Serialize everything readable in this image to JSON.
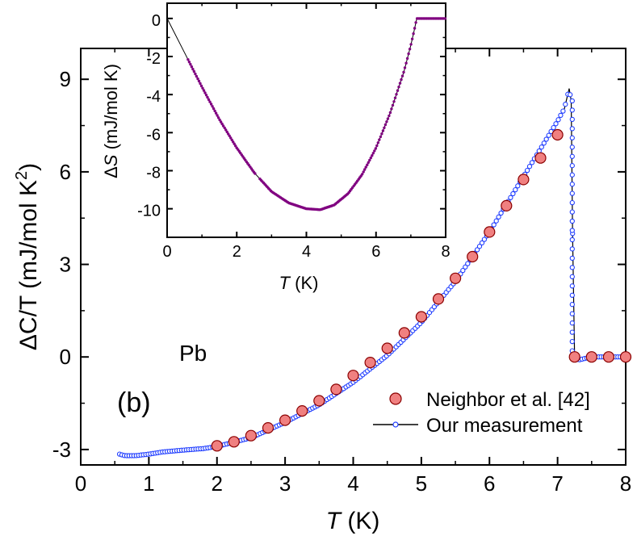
{
  "chart_data": [
    {
      "type": "scatter",
      "xlabel_var": "T",
      "xlabel_unit": " (K)",
      "ylabel_main": "ΔC/T (mJ/mol K",
      "ylabel_sup": "2",
      "ylabel_close": ")",
      "xlim": [
        0,
        8
      ],
      "ylim": [
        -3.5,
        10
      ],
      "xticks": [
        0,
        1,
        2,
        3,
        4,
        5,
        6,
        7,
        8
      ],
      "xtick_labels": [
        "0",
        "1",
        "2",
        "3",
        "4",
        "5",
        "6",
        "7",
        "8"
      ],
      "yticks": [
        -3,
        0,
        3,
        6,
        9
      ],
      "ytick_labels": [
        "-3",
        "0",
        "3",
        "6",
        "9"
      ],
      "annotations": {
        "element": "Pb",
        "panel": "(b)"
      },
      "legend_position": "bottom-right",
      "series": [
        {
          "name": "Neighbor et al. [42]",
          "marker": "circle",
          "color": "#f08080",
          "edge_color": "#8b0000",
          "x": [
            2.0,
            2.25,
            2.5,
            2.75,
            3.0,
            3.25,
            3.5,
            3.75,
            4.0,
            4.25,
            4.5,
            4.75,
            5.0,
            5.25,
            5.5,
            5.75,
            6.0,
            6.25,
            6.5,
            6.75,
            7.0,
            7.25,
            7.5,
            7.75,
            8.0
          ],
          "y": [
            -2.88,
            -2.75,
            -2.55,
            -2.3,
            -2.05,
            -1.75,
            -1.42,
            -1.05,
            -0.6,
            -0.18,
            0.28,
            0.78,
            1.3,
            1.88,
            2.55,
            3.25,
            4.05,
            4.9,
            5.75,
            6.45,
            7.2,
            0.0,
            0.0,
            0.0,
            0.0
          ]
        },
        {
          "name": "Our measurement",
          "marker": "small-open-circle-line",
          "color": "#1e3cff",
          "line_color": "#000000",
          "x": [
            0.57,
            0.65,
            0.8,
            1.0,
            1.2,
            1.5,
            1.8,
            2.0,
            2.5,
            3.0,
            3.5,
            4.0,
            4.5,
            5.0,
            5.5,
            6.0,
            6.5,
            7.0,
            7.1,
            7.17,
            7.2,
            7.22,
            7.25,
            7.3,
            7.5,
            8.0
          ],
          "y": [
            -3.15,
            -3.2,
            -3.2,
            -3.15,
            -3.08,
            -3.02,
            -2.97,
            -2.9,
            -2.62,
            -2.12,
            -1.55,
            -0.82,
            0.05,
            1.12,
            2.45,
            4.05,
            5.85,
            7.65,
            8.05,
            8.7,
            8.3,
            4.0,
            0.0,
            -0.1,
            0.0,
            0.0
          ]
        }
      ]
    },
    {
      "type": "scatter",
      "xlabel_var": "T",
      "xlabel_unit": " (K)",
      "ylabel_delta": "Δ",
      "ylabel_var": "S",
      "ylabel_unit": " (mJ/mol K)",
      "xlim": [
        0,
        8
      ],
      "ylim": [
        -11.5,
        0.8
      ],
      "xticks": [
        0,
        2,
        4,
        6,
        8
      ],
      "xtick_labels": [
        "0",
        "2",
        "4",
        "6",
        "8"
      ],
      "yticks": [
        0,
        -2,
        -4,
        -6,
        -8,
        -10
      ],
      "ytick_labels": [
        "0",
        "-2",
        "-4",
        "-6",
        "-8",
        "-10"
      ],
      "series": [
        {
          "name": "",
          "marker": "dot",
          "color": "#800080",
          "x": [
            0.0,
            0.5,
            1.0,
            1.5,
            2.0,
            2.5,
            3.0,
            3.5,
            4.0,
            4.4,
            4.8,
            5.2,
            5.6,
            6.0,
            6.4,
            6.8,
            7.0,
            7.1,
            7.17,
            7.2,
            7.5,
            8.0
          ],
          "y": [
            0.0,
            -1.8,
            -3.6,
            -5.3,
            -6.8,
            -8.1,
            -9.1,
            -9.7,
            -10.0,
            -10.05,
            -9.8,
            -9.2,
            -8.2,
            -6.8,
            -5.0,
            -2.8,
            -1.4,
            -0.6,
            0.0,
            0.0,
            0.0,
            0.0
          ]
        }
      ]
    }
  ]
}
